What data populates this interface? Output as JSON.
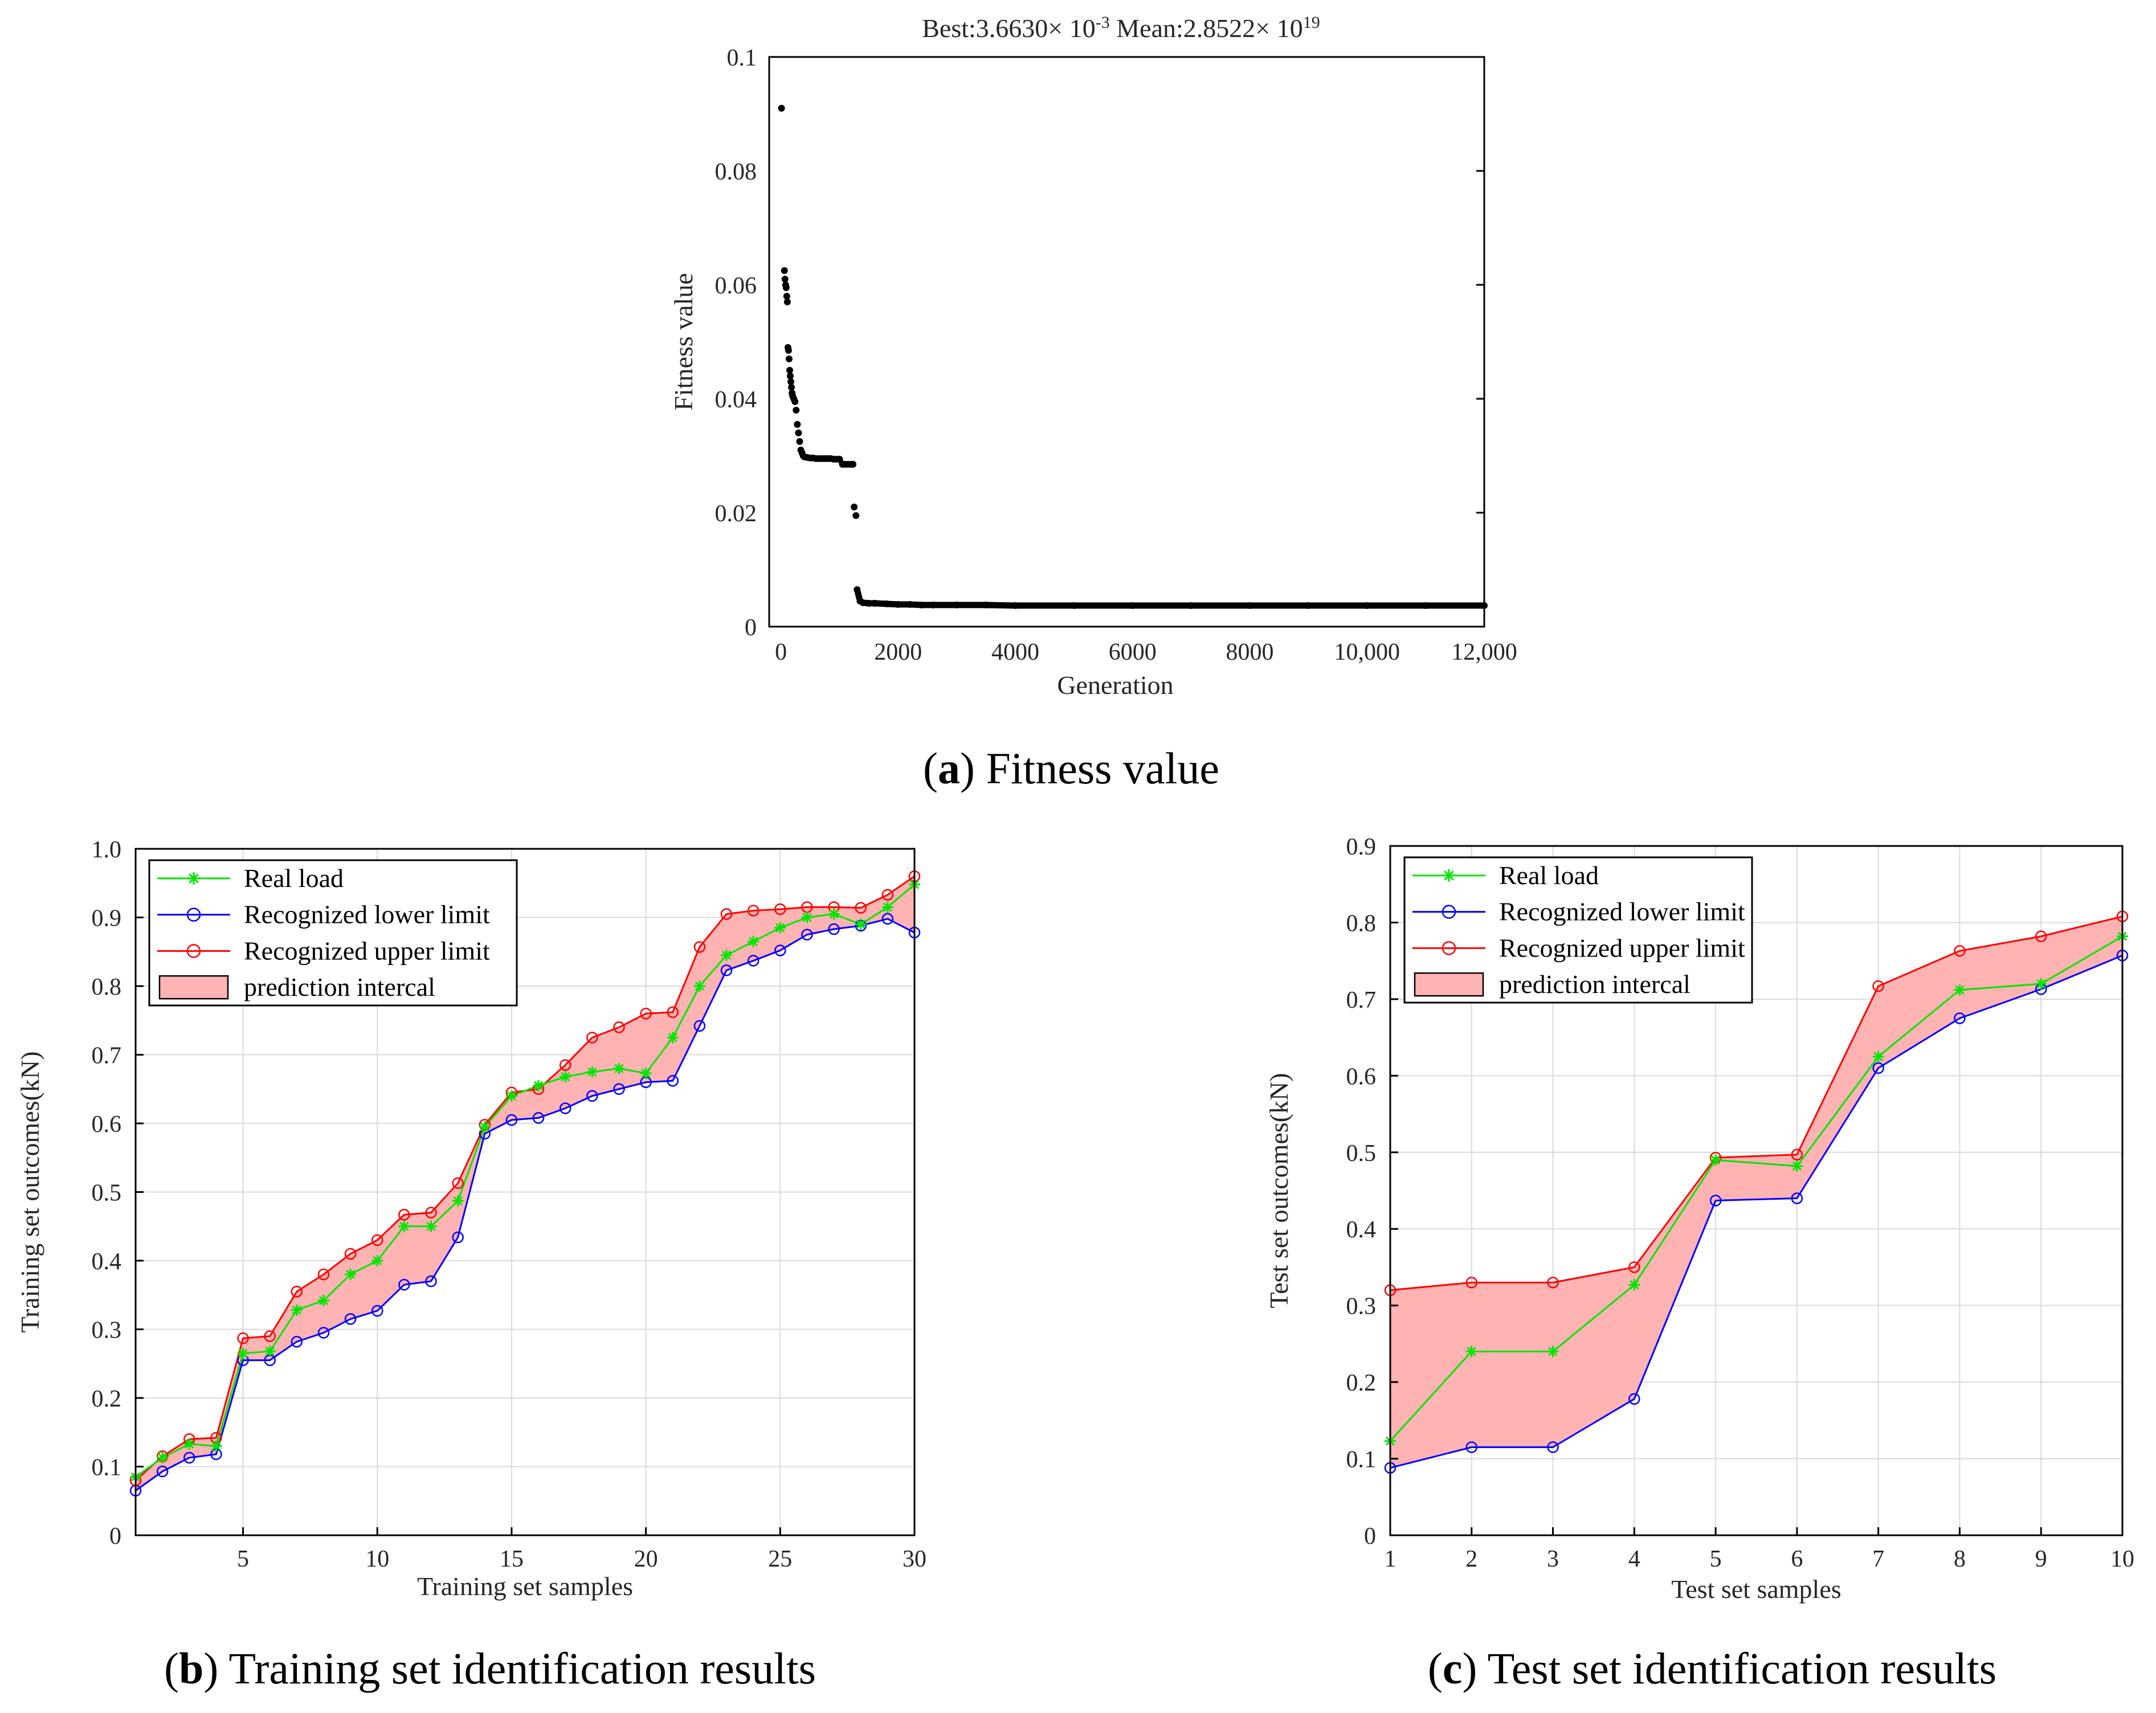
{
  "chart_data": [
    {
      "panel": "a",
      "type": "scatter",
      "title": "Best:3.6630× 10-3    Mean:2.8522× 1019",
      "title_parts": {
        "best_prefix": "Best:3.6630× 10",
        "best_exp": "-3",
        "mean_prefix": "Mean:2.8522× 10",
        "mean_exp": "19"
      },
      "xlabel": "Generation",
      "ylabel": "Fitness value",
      "xlim": [
        -200,
        12000
      ],
      "ylim": [
        0,
        0.1
      ],
      "xticks": [
        0,
        2000,
        4000,
        6000,
        8000,
        10000,
        12000
      ],
      "xtick_labels": [
        "0",
        "2000",
        "4000",
        "6000",
        "8000",
        "10,000",
        "12,000"
      ],
      "yticks": [
        0,
        0.02,
        0.04,
        0.06,
        0.08,
        0.1
      ],
      "ytick_labels": [
        "0",
        "0.02",
        "0.04",
        "0.06",
        "0.08",
        "0.1"
      ],
      "grid": false,
      "color": "#000000",
      "x": [
        10,
        60,
        70,
        80,
        90,
        100,
        110,
        120,
        130,
        140,
        150,
        160,
        170,
        180,
        190,
        200,
        220,
        240,
        260,
        280,
        300,
        320,
        340,
        360,
        380,
        400,
        450,
        500,
        550,
        600,
        650,
        700,
        750,
        800,
        850,
        900,
        950,
        1000,
        1050,
        1100,
        1150,
        1200,
        1230,
        1250,
        1280,
        1300,
        1350,
        1400,
        1500,
        1600,
        1800,
        2000,
        2200,
        2400,
        2600,
        3000,
        3500,
        4000,
        5000,
        6000,
        7000,
        8000,
        9000,
        10000,
        11000,
        12000
      ],
      "y": [
        0.091,
        0.0625,
        0.061,
        0.06,
        0.0595,
        0.058,
        0.057,
        0.049,
        0.0485,
        0.047,
        0.045,
        0.044,
        0.043,
        0.042,
        0.041,
        0.0405,
        0.04,
        0.0395,
        0.038,
        0.0355,
        0.034,
        0.0325,
        0.031,
        0.0305,
        0.03,
        0.0298,
        0.0297,
        0.0296,
        0.0296,
        0.0295,
        0.0295,
        0.0295,
        0.0295,
        0.0295,
        0.0295,
        0.0294,
        0.0294,
        0.0294,
        0.0285,
        0.0285,
        0.0285,
        0.0285,
        0.0285,
        0.021,
        0.0195,
        0.0065,
        0.0045,
        0.0042,
        0.0041,
        0.0041,
        0.004,
        0.0039,
        0.0039,
        0.0038,
        0.0038,
        0.0038,
        0.0038,
        0.0037,
        0.0037,
        0.0037,
        0.0037,
        0.0037,
        0.0037,
        0.0037,
        0.0037,
        0.0037
      ]
    },
    {
      "panel": "b",
      "type": "line",
      "xlabel": "Training set samples",
      "ylabel": "Training set outcomes(kN)",
      "xlim": [
        1,
        30
      ],
      "ylim": [
        0,
        1.0
      ],
      "xticks": [
        5,
        10,
        15,
        20,
        25,
        30
      ],
      "xtick_labels": [
        "5",
        "10",
        "15",
        "20",
        "25",
        "30"
      ],
      "yticks": [
        0,
        0.1,
        0.2,
        0.3,
        0.4,
        0.5,
        0.6,
        0.7,
        0.8,
        0.9,
        1.0
      ],
      "ytick_labels": [
        "0",
        "0.1",
        "0.2",
        "0.3",
        "0.4",
        "0.5",
        "0.6",
        "0.7",
        "0.8",
        "0.9",
        "1.0"
      ],
      "grid": true,
      "legend_position": "top-left",
      "x": [
        1,
        2,
        3,
        4,
        5,
        6,
        7,
        8,
        9,
        10,
        11,
        12,
        13,
        14,
        15,
        16,
        17,
        18,
        19,
        20,
        21,
        22,
        23,
        24,
        25,
        26,
        27,
        28,
        29,
        30
      ],
      "series": [
        {
          "name": "Real load",
          "color": "#00e600",
          "marker": "star",
          "values": [
            0.085,
            0.113,
            0.133,
            0.13,
            0.265,
            0.268,
            0.328,
            0.342,
            0.38,
            0.4,
            0.45,
            0.45,
            0.487,
            0.595,
            0.64,
            0.655,
            0.668,
            0.675,
            0.68,
            0.673,
            0.725,
            0.8,
            0.845,
            0.865,
            0.885,
            0.9,
            0.905,
            0.89,
            0.915,
            0.948
          ]
        },
        {
          "name": "Recognized lower limit",
          "color": "#0000ff",
          "marker": "circle",
          "values": [
            0.065,
            0.093,
            0.113,
            0.118,
            0.255,
            0.255,
            0.282,
            0.295,
            0.315,
            0.327,
            0.365,
            0.37,
            0.434,
            0.585,
            0.605,
            0.608,
            0.622,
            0.64,
            0.65,
            0.66,
            0.662,
            0.742,
            0.823,
            0.837,
            0.852,
            0.875,
            0.883,
            0.888,
            0.898,
            0.878
          ]
        },
        {
          "name": "Recognized upper limit",
          "color": "#ff0000",
          "marker": "circle",
          "values": [
            0.08,
            0.115,
            0.14,
            0.142,
            0.287,
            0.29,
            0.355,
            0.38,
            0.41,
            0.43,
            0.467,
            0.47,
            0.513,
            0.598,
            0.645,
            0.65,
            0.685,
            0.725,
            0.74,
            0.76,
            0.762,
            0.857,
            0.905,
            0.91,
            0.912,
            0.915,
            0.915,
            0.914,
            0.933,
            0.96
          ]
        }
      ],
      "band": {
        "name": "prediction intercal",
        "fill": "#ffb3b3"
      }
    },
    {
      "panel": "c",
      "type": "line",
      "xlabel": "Test set samples",
      "ylabel": "Test set outcomes(kN)",
      "xlim": [
        1,
        10
      ],
      "ylim": [
        0,
        0.9
      ],
      "xticks": [
        1,
        2,
        3,
        4,
        5,
        6,
        7,
        8,
        9,
        10
      ],
      "xtick_labels": [
        "1",
        "2",
        "3",
        "4",
        "5",
        "6",
        "7",
        "8",
        "9",
        "10"
      ],
      "yticks": [
        0,
        0.1,
        0.2,
        0.3,
        0.4,
        0.5,
        0.6,
        0.7,
        0.8,
        0.9
      ],
      "ytick_labels": [
        "0",
        "0.1",
        "0.2",
        "0.3",
        "0.4",
        "0.5",
        "0.6",
        "0.7",
        "0.8",
        "0.9"
      ],
      "grid": true,
      "legend_position": "top-left",
      "x": [
        1,
        2,
        3,
        4,
        5,
        6,
        7,
        8,
        9,
        10
      ],
      "series": [
        {
          "name": "Real load",
          "color": "#00e600",
          "marker": "star",
          "values": [
            0.123,
            0.24,
            0.24,
            0.327,
            0.49,
            0.482,
            0.625,
            0.712,
            0.72,
            0.782
          ]
        },
        {
          "name": "Recognized lower limit",
          "color": "#0000ff",
          "marker": "circle",
          "values": [
            0.088,
            0.115,
            0.115,
            0.178,
            0.437,
            0.44,
            0.61,
            0.675,
            0.713,
            0.757
          ]
        },
        {
          "name": "Recognized upper limit",
          "color": "#ff0000",
          "marker": "circle",
          "values": [
            0.32,
            0.33,
            0.33,
            0.35,
            0.493,
            0.497,
            0.717,
            0.763,
            0.782,
            0.808
          ]
        }
      ],
      "band": {
        "name": "prediction intercal",
        "fill": "#ffb3b3"
      }
    }
  ],
  "captions": {
    "a": {
      "open": "(",
      "letter": "a",
      "rest": ") Fitness value"
    },
    "b": {
      "open": "(",
      "letter": "b",
      "rest": ") Training set identification results"
    },
    "c": {
      "open": "(",
      "letter": "c",
      "rest": ") Test set identification results"
    }
  }
}
